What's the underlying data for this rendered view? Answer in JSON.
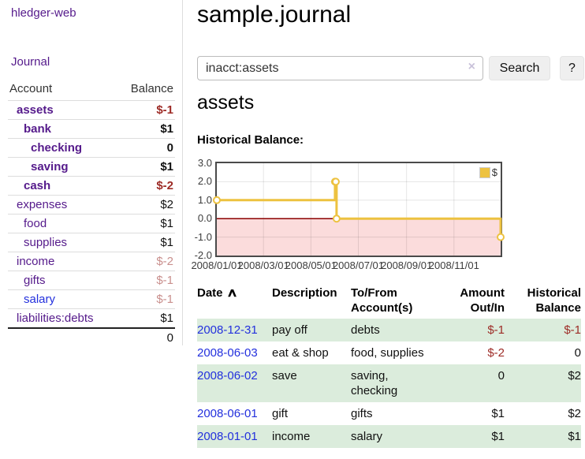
{
  "app": {
    "brand": "hledger-web"
  },
  "sidebar": {
    "nav_journal": "Journal",
    "accounts": {
      "col_account": "Account",
      "col_balance": "Balance",
      "rows": [
        {
          "name": "assets",
          "indent": 1,
          "bold": true,
          "balance": "$-1",
          "balance_style": "negative"
        },
        {
          "name": "bank",
          "indent": 2,
          "bold": true,
          "balance": "$1",
          "balance_style": "normal"
        },
        {
          "name": "checking",
          "indent": 3,
          "bold": true,
          "balance": "0",
          "balance_style": "normal"
        },
        {
          "name": "saving",
          "indent": 3,
          "bold": true,
          "balance": "$1",
          "balance_style": "normal"
        },
        {
          "name": "cash",
          "indent": 2,
          "bold": true,
          "balance": "$-2",
          "balance_style": "negative"
        },
        {
          "name": "expenses",
          "indent": 1,
          "bold": false,
          "balance": "$2",
          "balance_style": "normal"
        },
        {
          "name": "food",
          "indent": 2,
          "bold": false,
          "balance": "$1",
          "balance_style": "normal"
        },
        {
          "name": "supplies",
          "indent": 2,
          "bold": false,
          "balance": "$1",
          "balance_style": "normal"
        },
        {
          "name": "income",
          "indent": 1,
          "bold": false,
          "balance": "$-2",
          "balance_style": "faded-negative"
        },
        {
          "name": "gifts",
          "indent": 2,
          "bold": false,
          "balance": "$-1",
          "balance_style": "faded-negative"
        },
        {
          "name": "salary",
          "indent": 2,
          "bold": false,
          "balance": "$-1",
          "balance_style": "faded-negative",
          "link_style": "blue"
        },
        {
          "name": "liabilities:debts",
          "indent": 1,
          "bold": false,
          "balance": "$1",
          "balance_style": "normal"
        }
      ],
      "total": "0"
    }
  },
  "header": {
    "title": "sample.journal"
  },
  "search": {
    "query": "inacct:assets",
    "clear_icon": "×",
    "search_label": "Search",
    "help_label": "?"
  },
  "account_page": {
    "heading": "assets",
    "chart_title": "Historical Balance:"
  },
  "chart_data": {
    "type": "line",
    "title": "Historical Balance:",
    "series": [
      {
        "name": "$",
        "color": "#edc240",
        "style": "step-with-markers",
        "points": [
          [
            "2008-01-01",
            1
          ],
          [
            "2008-06-01",
            2
          ],
          [
            "2008-06-02",
            2
          ],
          [
            "2008-06-03",
            0
          ],
          [
            "2008-12-31",
            -1
          ]
        ]
      }
    ],
    "x_range": [
      "2008-01-01",
      "2008-12-31"
    ],
    "ylim": [
      -2,
      3
    ],
    "y_ticks": [
      3.0,
      2.0,
      1.0,
      0.0,
      -1.0,
      -2.0
    ],
    "x_ticks": [
      "2008/01/01",
      "2008/03/01",
      "2008/05/01",
      "2008/07/01",
      "2008/09/01",
      "2008/11/01"
    ],
    "legend_position": "top-right",
    "grid": true,
    "negative_region_fill": "#fbdcdc",
    "zero_line_color": "#8b0000"
  },
  "register": {
    "columns": {
      "date": "Date",
      "sort_icon": "∧",
      "description": "Description",
      "tofrom": "To/From Account(s)",
      "amount": "Amount Out/In",
      "balance": "Historical Balance"
    },
    "rows": [
      {
        "date": "2008-12-31",
        "description": "pay off",
        "accounts": "debts",
        "amount": "$-1",
        "amount_negative": true,
        "balance": "$-1",
        "balance_negative": true
      },
      {
        "date": "2008-06-03",
        "description": "eat & shop",
        "accounts": "food, supplies",
        "amount": "$-2",
        "amount_negative": true,
        "balance": "0",
        "balance_negative": false
      },
      {
        "date": "2008-06-02",
        "description": "save",
        "accounts": "saving,\nchecking",
        "amount": "0",
        "amount_negative": false,
        "balance": "$2",
        "balance_negative": false
      },
      {
        "date": "2008-06-01",
        "description": "gift",
        "accounts": "gifts",
        "amount": "$1",
        "amount_negative": false,
        "balance": "$2",
        "balance_negative": false
      },
      {
        "date": "2008-01-01",
        "description": "income",
        "accounts": "salary",
        "amount": "$1",
        "amount_negative": false,
        "balance": "$1",
        "balance_negative": false
      }
    ]
  },
  "colors": {
    "link_purple": "#551a8b",
    "link_blue": "#2330dd",
    "negative": "#9d2b26",
    "faded_negative": "#c98f8d",
    "row_green": "#dbecdc",
    "gold": "#edc240",
    "chart_negative_fill": "#fbdcdc",
    "zero_line": "#8b0000",
    "divider": "#dddddd",
    "button_bg": "#efefef"
  }
}
